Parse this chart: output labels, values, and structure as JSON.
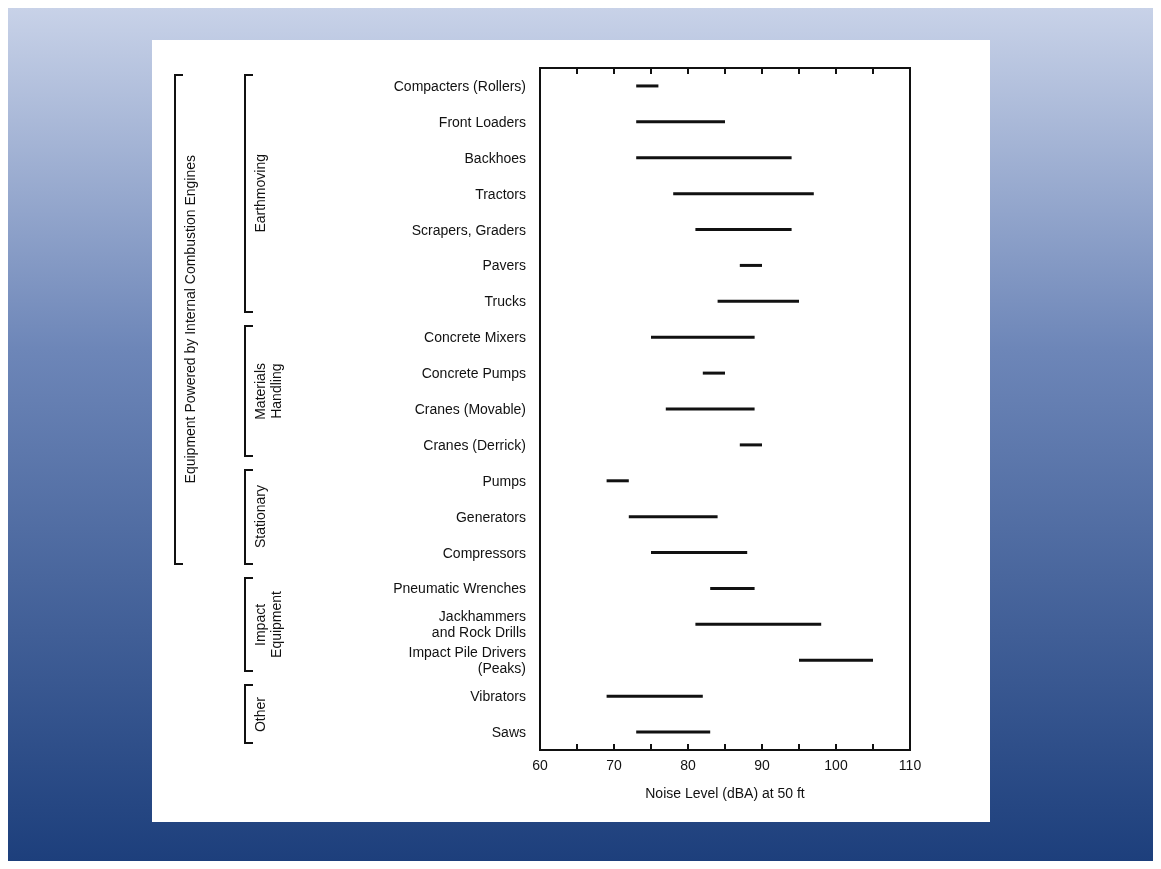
{
  "chart_data": {
    "type": "bar",
    "orientation": "horizontal",
    "xlabel": "Noise Level (dBA) at 50 ft",
    "categories": [
      "Compacters (Rollers)",
      "Front Loaders",
      "Backhoes",
      "Tractors",
      "Scrapers, Graders",
      "Pavers",
      "Trucks",
      "Concrete Mixers",
      "Concrete Pumps",
      "Cranes (Movable)",
      "Cranes (Derrick)",
      "Pumps",
      "Generators",
      "Compressors",
      "Pneumatic Wrenches",
      "Jackhammers\nand Rock Drills",
      "Impact Pile Drivers\n(Peaks)",
      "Vibrators",
      "Saws"
    ],
    "base": [
      73,
      73,
      73,
      78,
      81,
      87,
      84,
      75,
      82,
      77,
      87,
      69,
      72,
      75,
      83,
      81,
      95,
      69,
      73
    ],
    "values": [
      3,
      12,
      21,
      19,
      13,
      3,
      11,
      14,
      3,
      12,
      3,
      3,
      12,
      13,
      6,
      17,
      10,
      13,
      10
    ],
    "color": "#111111",
    "xlim": [
      60,
      110
    ],
    "xticks": [
      60,
      {
        "value": 65,
        "label": null
      },
      70,
      {
        "value": 75,
        "label": null
      },
      80,
      {
        "value": 85,
        "label": null
      },
      90,
      {
        "value": 95,
        "label": null
      },
      100,
      {
        "value": 105,
        "label": null
      },
      110
    ],
    "grid": false,
    "annotations": [
      "Equipment Powered by Internal Combustion Engines",
      "Earthmoving",
      "Materials\nHandling",
      "Stationary",
      "Impact\nEquipment",
      "Other"
    ]
  }
}
